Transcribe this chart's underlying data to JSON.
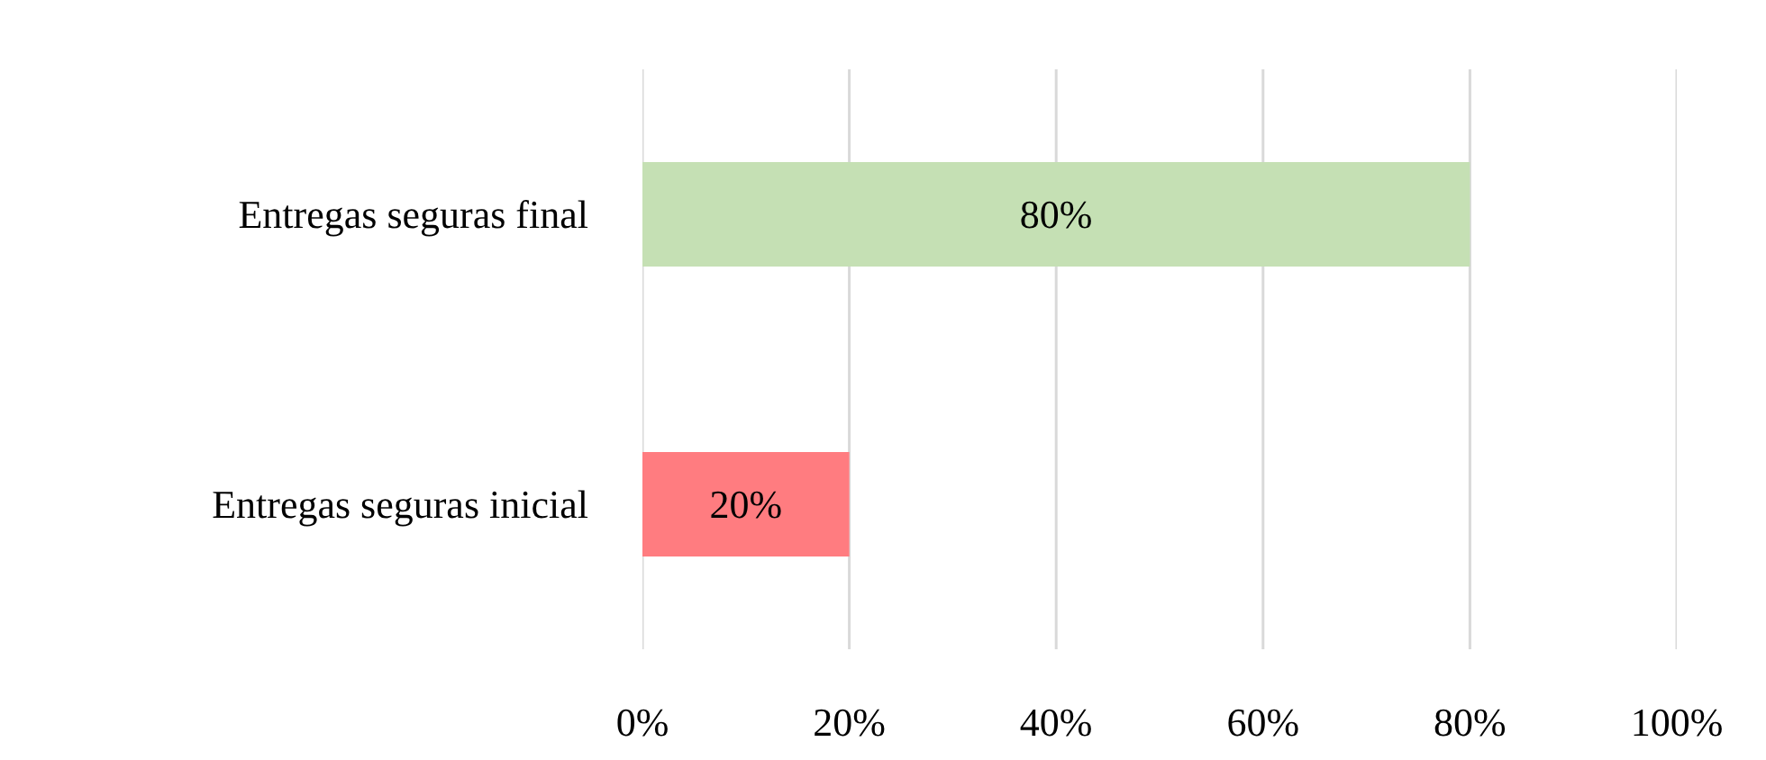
{
  "chart_data": {
    "type": "bar",
    "orientation": "horizontal",
    "categories": [
      "Entregas seguras final",
      "Entregas seguras inicial"
    ],
    "values": [
      80,
      20
    ],
    "colors": [
      "#c5e0b4",
      "#ff7c80"
    ],
    "value_labels": [
      "80%",
      "20%"
    ],
    "xlim": [
      0,
      100
    ],
    "xticks": [
      {
        "value": 0,
        "label": "0%"
      },
      {
        "value": 20,
        "label": "20%"
      },
      {
        "value": 40,
        "label": "40%"
      },
      {
        "value": 60,
        "label": "60%"
      },
      {
        "value": 80,
        "label": "80%"
      },
      {
        "value": 100,
        "label": "100%"
      }
    ],
    "grid": "x"
  }
}
